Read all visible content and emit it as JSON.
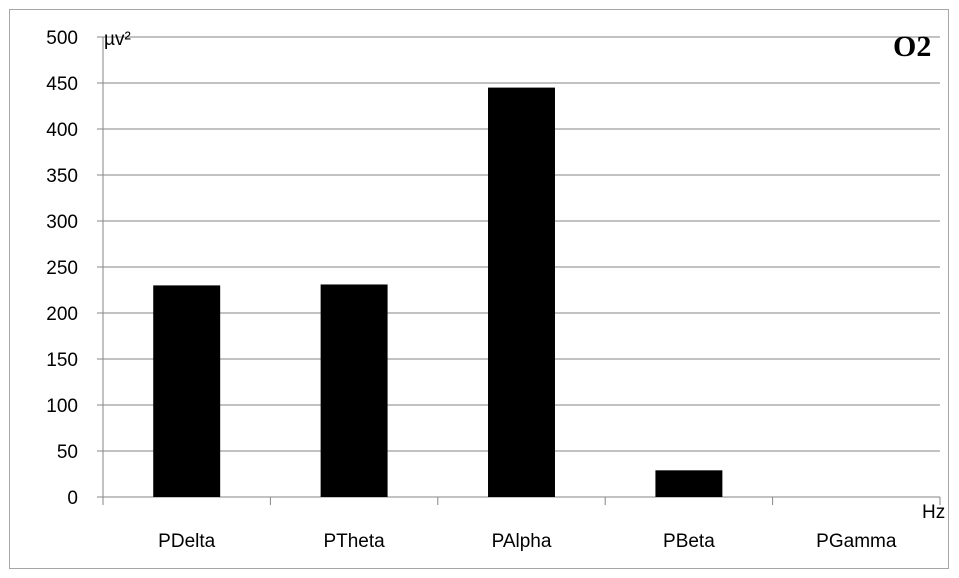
{
  "chart_data": {
    "type": "bar",
    "title": "O2",
    "ylabel": "µv²",
    "xlabel": "Hz",
    "categories": [
      "PDelta",
      "PTheta",
      "PAlpha",
      "PBeta",
      "PGamma"
    ],
    "values": [
      230,
      231,
      445,
      29,
      0
    ],
    "ylim": [
      0,
      500
    ],
    "yticks": [
      0,
      50,
      100,
      150,
      200,
      250,
      300,
      350,
      400,
      450,
      500
    ],
    "grid": true,
    "bar_color": "#000000",
    "grid_color": "#868686"
  }
}
